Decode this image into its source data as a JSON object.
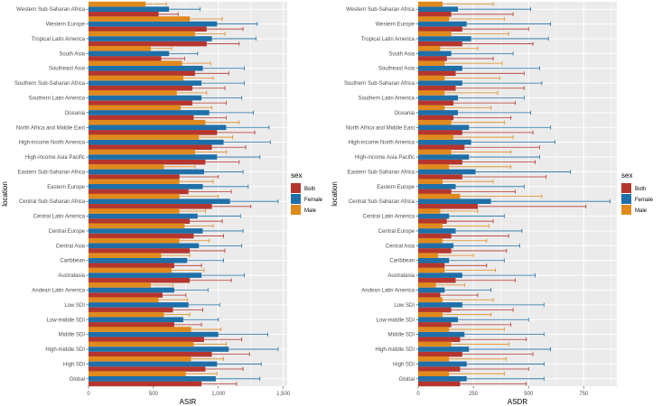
{
  "figure": {
    "ylabel": "location",
    "legend": {
      "title": "sex",
      "position": "right"
    }
  },
  "chart_data": [
    {
      "type": "bar",
      "orientation": "horizontal",
      "xlabel": "ASIR",
      "ylabel": "location",
      "xlim": [
        0,
        1530
      ],
      "xticks": [
        0,
        500,
        1000,
        1500
      ],
      "xtick_labels": [
        "0",
        "500",
        "1,000",
        "1,500"
      ],
      "grid": true,
      "legend_position": "right",
      "categories": [
        "Western Sub-Saharan Africa",
        "Western Europe",
        "Tropical Latin America",
        "South Asia",
        "Southeast Asia",
        "Southern Sub-Saharan Africa",
        "Southern Latin America",
        "Oceania",
        "North Africa and Middle East",
        "High-income North America",
        "High-income Asia Pacific",
        "Eastern Sub-Saharan Africa",
        "Eastern Europe",
        "Central Sub-Saharan Africa",
        "Central Latin America",
        "Central Europe",
        "Central Asia",
        "Caribbean",
        "Australasia",
        "Andean Latin America",
        "Low SDI",
        "Low-middle SDI",
        "Middle SDI",
        "High-middle SDI",
        "High SDI",
        "Global"
      ],
      "series": [
        {
          "name": "Both",
          "values": [
            540,
            910,
            910,
            560,
            820,
            800,
            800,
            810,
            990,
            950,
            900,
            700,
            770,
            950,
            780,
            810,
            780,
            660,
            780,
            570,
            650,
            660,
            890,
            950,
            900,
            870
          ],
          "error_upper": [
            690,
            1190,
            1160,
            740,
            1080,
            1050,
            1060,
            1060,
            1280,
            1210,
            1160,
            1000,
            1100,
            1250,
            1030,
            1040,
            1050,
            870,
            1100,
            750,
            880,
            870,
            1180,
            1240,
            1190,
            1140
          ]
        },
        {
          "name": "Female",
          "values": [
            620,
            990,
            950,
            620,
            880,
            870,
            870,
            930,
            1060,
            1040,
            990,
            890,
            880,
            1090,
            840,
            880,
            850,
            760,
            870,
            660,
            770,
            730,
            1000,
            1080,
            990,
            980
          ],
          "error_upper": [
            860,
            1300,
            1290,
            840,
            1200,
            1200,
            1180,
            1270,
            1390,
            1400,
            1320,
            1190,
            1230,
            1460,
            1170,
            1190,
            1180,
            1040,
            1200,
            920,
            1010,
            1000,
            1380,
            1460,
            1330,
            1320
          ]
        },
        {
          "name": "Male",
          "values": [
            440,
            780,
            820,
            480,
            720,
            730,
            680,
            710,
            900,
            850,
            820,
            580,
            700,
            700,
            700,
            740,
            700,
            560,
            640,
            480,
            540,
            580,
            790,
            810,
            790,
            750
          ],
          "error_upper": [
            600,
            1030,
            1050,
            640,
            940,
            960,
            910,
            950,
            1160,
            1110,
            1060,
            820,
            960,
            1000,
            900,
            960,
            930,
            780,
            890,
            650,
            760,
            780,
            1020,
            1060,
            1040,
            990
          ]
        }
      ]
    },
    {
      "type": "bar",
      "orientation": "horizontal",
      "xlabel": "ASDR",
      "ylabel": "location",
      "xlim": [
        0,
        900
      ],
      "xticks": [
        0,
        250,
        500,
        750
      ],
      "xtick_labels": [
        "0",
        "250",
        "500",
        "750"
      ],
      "grid": true,
      "legend_position": "right",
      "categories": [
        "Western Sub-Saharan Africa",
        "Western Europe",
        "Tropical Latin America",
        "South Asia",
        "Southeast Asia",
        "Southern Sub-Saharan Africa",
        "Southern Latin America",
        "Oceania",
        "North Africa and Middle East",
        "High-income North America",
        "High-income Asia Pacific",
        "Eastern Sub-Saharan Africa",
        "Eastern Europe",
        "Central Sub-Saharan Africa",
        "Central Latin America",
        "Central Europe",
        "Central Asia",
        "Caribbean",
        "Australasia",
        "Andean Latin America",
        "Low SDI",
        "Low-middle SDI",
        "Middle SDI",
        "High-middle SDI",
        "High SDI",
        "Global"
      ],
      "series": [
        {
          "name": "Both",
          "values": [
            150,
            200,
            200,
            130,
            170,
            170,
            160,
            160,
            200,
            210,
            200,
            200,
            150,
            270,
            130,
            150,
            150,
            120,
            170,
            100,
            150,
            150,
            190,
            200,
            190,
            190
          ],
          "error_upper": [
            430,
            500,
            520,
            340,
            480,
            480,
            440,
            420,
            520,
            550,
            530,
            580,
            440,
            760,
            340,
            410,
            400,
            310,
            440,
            270,
            430,
            420,
            490,
            520,
            500,
            490
          ]
        },
        {
          "name": "Female",
          "values": [
            180,
            220,
            240,
            150,
            200,
            200,
            180,
            180,
            230,
            240,
            230,
            260,
            170,
            330,
            140,
            170,
            160,
            140,
            200,
            120,
            200,
            180,
            210,
            230,
            220,
            220
          ],
          "error_upper": [
            510,
            600,
            590,
            430,
            550,
            560,
            480,
            510,
            600,
            620,
            550,
            690,
            480,
            870,
            390,
            470,
            460,
            390,
            530,
            330,
            570,
            500,
            570,
            600,
            570,
            570
          ]
        },
        {
          "name": "Male",
          "values": [
            110,
            140,
            150,
            100,
            120,
            120,
            120,
            120,
            150,
            160,
            150,
            140,
            110,
            190,
            100,
            110,
            110,
            90,
            120,
            80,
            110,
            110,
            140,
            150,
            140,
            140
          ],
          "error_upper": [
            340,
            390,
            410,
            270,
            380,
            370,
            360,
            330,
            390,
            430,
            420,
            420,
            340,
            560,
            270,
            320,
            310,
            250,
            350,
            210,
            340,
            330,
            390,
            410,
            400,
            390
          ]
        }
      ]
    }
  ],
  "colors": {
    "Both": "#B5362E",
    "Female": "#1F6FA8",
    "Male": "#E08A1E",
    "panel": "#EBEBEB",
    "grid": "#ffffff"
  }
}
